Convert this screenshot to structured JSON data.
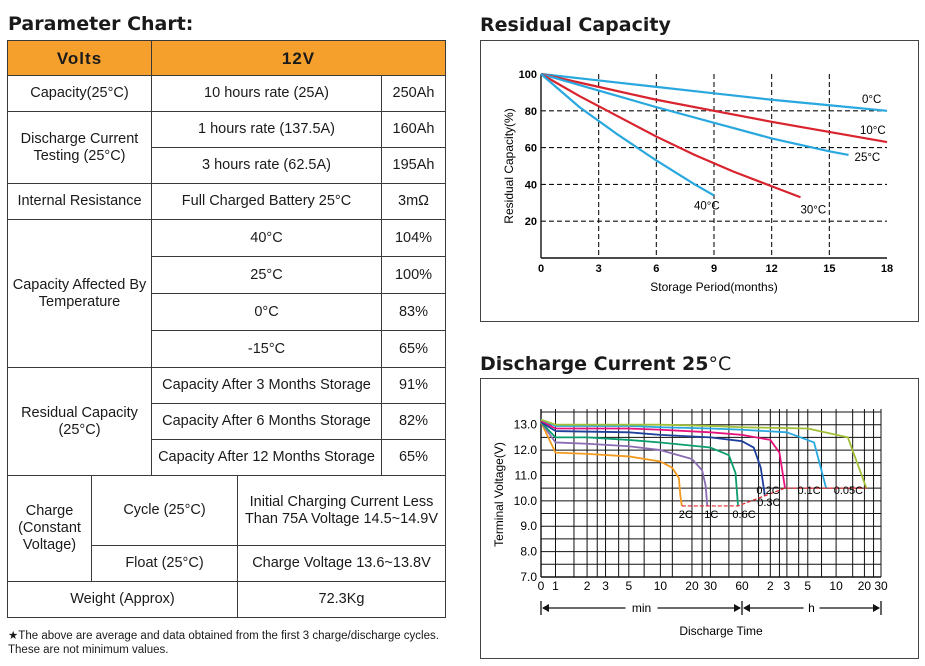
{
  "param": {
    "title": "Parameter Chart:",
    "volts_label": "Volts",
    "volts_value": "12V",
    "capacity_label": "Capacity(25°C)",
    "capacity_rate": "10 hours rate (25A)",
    "capacity_value": "250Ah",
    "discharge_label": "Discharge Current Testing (25°C)",
    "discharge_rows": [
      {
        "rate": "1 hours rate (137.5A)",
        "value": "160Ah"
      },
      {
        "rate": "3 hours rate (62.5A)",
        "value": "195Ah"
      }
    ],
    "ir_label": "Internal Resistance",
    "ir_cond": "Full Charged Battery 25°C",
    "ir_value": "3mΩ",
    "temp_label": "Capacity Affected By Temperature",
    "temp_rows": [
      {
        "temp": "40°C",
        "value": "104%"
      },
      {
        "temp": "25°C",
        "value": "100%"
      },
      {
        "temp": "0°C",
        "value": "83%"
      },
      {
        "temp": "-15°C",
        "value": "65%"
      }
    ],
    "resid_label": "Residual Capacity (25°C)",
    "resid_rows": [
      {
        "cond": "Capacity After 3 Months Storage",
        "value": "91%"
      },
      {
        "cond": "Capacity After 6 Months Storage",
        "value": "82%"
      },
      {
        "cond": "Capacity After 12 Months Storage",
        "value": "65%"
      }
    ],
    "charge_label": "Charge (Constant Voltage)",
    "cycle_label": "Cycle (25°C)",
    "cycle_value": "Initial Charging Current Less Than 75A Voltage 14.5~14.9V",
    "float_label": "Float (25°C)",
    "float_value": "Charge Voltage 13.6~13.8V",
    "weight_label": "Weight (Approx)",
    "weight_value": "72.3Kg",
    "note": "★The above are average and data obtained from the first 3 charge/discharge cycles. These are not minimum values."
  },
  "chart_data": [
    {
      "type": "line",
      "title": "Residual Capacity",
      "xlabel": "Storage Period(months)",
      "ylabel": "Residual Capacity(%)",
      "xlim": [
        0,
        18
      ],
      "ylim": [
        0,
        100
      ],
      "xticks": [
        "0",
        "3",
        "6",
        "9",
        "12",
        "15",
        "18"
      ],
      "yticks": [
        "20",
        "40",
        "60",
        "80",
        "100"
      ],
      "grid": true,
      "series": [
        {
          "name": "0°C",
          "color": "#29a8df",
          "x": [
            0,
            3,
            6,
            9,
            12,
            15,
            18
          ],
          "y": [
            100,
            96.5,
            93,
            89.5,
            86,
            83,
            80
          ]
        },
        {
          "name": "10°C",
          "color": "#d9232d",
          "x": [
            0,
            3,
            6,
            9,
            12,
            15,
            18
          ],
          "y": [
            100,
            93,
            86,
            80,
            74,
            68.5,
            63
          ]
        },
        {
          "name": "25°C",
          "color": "#29a8df",
          "x": [
            0,
            3,
            6,
            9,
            12,
            15,
            16
          ],
          "y": [
            100,
            91,
            82,
            73.5,
            65,
            58,
            56
          ]
        },
        {
          "name": "30°C",
          "color": "#d9232d",
          "x": [
            0,
            2,
            4,
            6,
            8,
            10,
            12,
            13.5
          ],
          "y": [
            100,
            88,
            77,
            66,
            56,
            47,
            39,
            33
          ]
        },
        {
          "name": "40°C",
          "color": "#29a8df",
          "x": [
            0,
            2,
            4,
            6,
            8,
            9
          ],
          "y": [
            100,
            82,
            67,
            53,
            40,
            34
          ]
        }
      ]
    },
    {
      "type": "line",
      "title": "Discharge Current 25",
      "title_unit": "°C",
      "xlabel": "Discharge Time",
      "ylabel": "Terminal Voltage(V)",
      "ylim": [
        7.0,
        13.5
      ],
      "yticks": [
        "7.0",
        "8.0",
        "9.0",
        "10.0",
        "11.0",
        "12.0",
        "13.0"
      ],
      "xticks": [
        "0",
        "1",
        "2",
        "3",
        "5",
        "10",
        "20",
        "30",
        "60",
        "2",
        "3",
        "5",
        "10",
        "20",
        "30"
      ],
      "x_units": {
        "min": "min",
        "h": "h"
      },
      "grid": true,
      "series": [
        {
          "name": "2C",
          "color": "#f39a1e",
          "x_min": [
            0,
            1,
            2,
            5,
            10,
            13,
            15,
            15.5,
            16
          ],
          "y": [
            13.1,
            11.9,
            11.85,
            11.75,
            11.55,
            11.3,
            10.9,
            10.2,
            9.8
          ]
        },
        {
          "name": "1C",
          "color": "#8a6cb3",
          "x_min": [
            0,
            1,
            2,
            5,
            10,
            20,
            25,
            27,
            28
          ],
          "y": [
            13.1,
            12.3,
            12.25,
            12.15,
            12.0,
            11.65,
            11.2,
            10.6,
            9.8
          ]
        },
        {
          "name": "0.6C",
          "color": "#0a9e6e",
          "x_min": [
            0,
            1,
            2,
            5,
            10,
            30,
            45,
            52,
            55
          ],
          "y": [
            13.1,
            12.5,
            12.5,
            12.4,
            12.3,
            12.1,
            11.8,
            11.1,
            9.8
          ]
        },
        {
          "name": "0.3C",
          "color": "#1e3f9b",
          "x_min": [
            0,
            1,
            5,
            10,
            30,
            60,
            80,
            95,
            105
          ],
          "y": [
            13.1,
            12.75,
            12.7,
            12.6,
            12.5,
            12.35,
            12.1,
            11.3,
            10.2
          ]
        },
        {
          "name": "0.2C",
          "color": "#e5127d",
          "x_min": [
            0,
            1,
            5,
            10,
            30,
            60,
            120,
            150,
            172
          ],
          "y": [
            13.15,
            12.85,
            12.85,
            12.8,
            12.7,
            12.6,
            12.4,
            11.9,
            10.5
          ]
        },
        {
          "name": "0.1C",
          "color": "#29a8df",
          "x_min": [
            0,
            1,
            5,
            10,
            30,
            60,
            180,
            350,
            470
          ],
          "y": [
            13.2,
            12.95,
            12.95,
            12.9,
            12.85,
            12.8,
            12.7,
            12.3,
            10.5
          ]
        },
        {
          "name": "0.05C",
          "color": "#a2c037",
          "x_min": [
            0,
            1,
            5,
            10,
            30,
            60,
            300,
            800,
            1260
          ],
          "y": [
            13.2,
            13.0,
            13.0,
            13.0,
            12.95,
            12.9,
            12.85,
            12.5,
            10.5
          ]
        }
      ]
    }
  ]
}
